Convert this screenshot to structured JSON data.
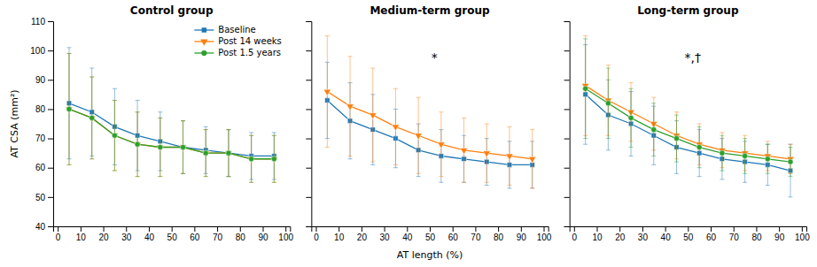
{
  "chart_data": [
    {
      "type": "line",
      "title": "Control group",
      "ylabel": "AT CSA (mm²)",
      "x": [
        5,
        15,
        25,
        35,
        45,
        55,
        65,
        75,
        85,
        95
      ],
      "series": [
        {
          "name": "Baseline",
          "marker": "square",
          "values": [
            82,
            79,
            74,
            71,
            69,
            67,
            66,
            65,
            64,
            64
          ],
          "errors": [
            19,
            15,
            13,
            12,
            10,
            9,
            8,
            8,
            8,
            8
          ]
        },
        {
          "name": "Post 14 weeks",
          "marker": "triangle-down",
          "values": [
            80,
            77,
            71,
            68,
            67,
            67,
            65,
            65,
            63,
            63
          ],
          "errors": [
            19,
            14,
            12,
            11,
            10,
            9,
            8,
            8,
            8,
            8
          ]
        },
        {
          "name": "Post 1.5 years",
          "marker": "circle",
          "values": [
            80,
            77,
            71,
            68,
            67,
            67,
            65,
            65,
            63,
            63
          ],
          "errors": [
            19,
            14,
            12,
            11,
            10,
            9,
            8,
            8,
            8,
            8
          ]
        }
      ],
      "xlim": [
        -2,
        102
      ],
      "xticks": [
        0,
        10,
        20,
        30,
        40,
        50,
        60,
        70,
        80,
        90,
        100
      ],
      "ylim": [
        40,
        110
      ],
      "yticks": [
        40,
        50,
        60,
        70,
        80,
        90,
        100,
        110
      ],
      "legend": "upper right",
      "grid": false
    },
    {
      "type": "line",
      "title": "Medium-term group",
      "xlabel": "AT length (%)",
      "annotation": "*",
      "x": [
        5,
        15,
        25,
        35,
        45,
        55,
        65,
        75,
        85,
        95
      ],
      "series": [
        {
          "marker": "square",
          "values": [
            83,
            76,
            73,
            70,
            66,
            64,
            63,
            62,
            61,
            61
          ],
          "errors": [
            13,
            13,
            12,
            10,
            9,
            9,
            8,
            8,
            8,
            8
          ]
        },
        {
          "marker": "triangle-down",
          "values": [
            86,
            81,
            78,
            74,
            71,
            68,
            66,
            65,
            64,
            63
          ],
          "errors": [
            19,
            17,
            16,
            13,
            13,
            11,
            11,
            10,
            10,
            10
          ]
        }
      ],
      "xlim": [
        -2,
        102
      ],
      "xticks": [
        0,
        10,
        20,
        30,
        40,
        50,
        60,
        70,
        80,
        90,
        100
      ],
      "ylim": [
        40,
        110
      ],
      "yticks": [
        40,
        50,
        60,
        70,
        80,
        90,
        100,
        110
      ],
      "tick_labels": "x",
      "grid": false
    },
    {
      "type": "line",
      "title": "Long-term group",
      "annotation": "*,†",
      "x": [
        5,
        15,
        25,
        35,
        45,
        55,
        65,
        75,
        85,
        95
      ],
      "series": [
        {
          "marker": "square",
          "values": [
            85,
            78,
            75,
            71,
            67,
            65,
            63,
            62,
            61,
            59
          ],
          "errors": [
            17,
            12,
            11,
            10,
            9,
            8,
            7,
            7,
            7,
            9
          ]
        },
        {
          "marker": "triangle-down",
          "values": [
            88,
            83,
            79,
            75,
            71,
            68,
            66,
            65,
            64,
            63
          ],
          "errors": [
            17,
            12,
            10,
            9,
            8,
            7,
            6,
            6,
            5,
            5
          ]
        },
        {
          "marker": "circle",
          "values": [
            87,
            82,
            77,
            73,
            70,
            67,
            65,
            64,
            63,
            62
          ],
          "errors": [
            17,
            12,
            10,
            9,
            8,
            7,
            6,
            6,
            5,
            5
          ]
        }
      ],
      "xlim": [
        -2,
        102
      ],
      "xticks": [
        0,
        10,
        20,
        30,
        40,
        50,
        60,
        70,
        80,
        90,
        100
      ],
      "ylim": [
        40,
        110
      ],
      "yticks": [
        40,
        50,
        60,
        70,
        80,
        90,
        100,
        110
      ],
      "tick_labels": "x",
      "grid": false
    }
  ]
}
